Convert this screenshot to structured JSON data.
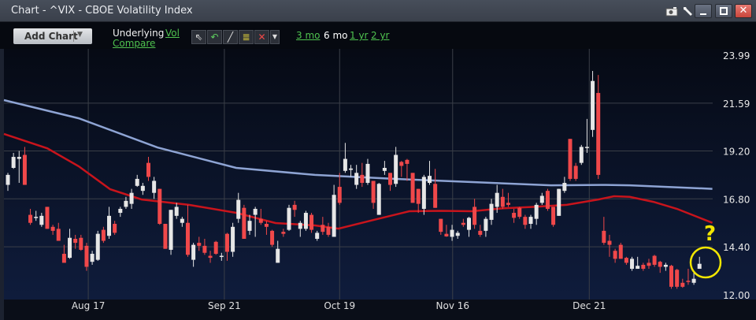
{
  "window": {
    "title": "Chart - ^VIX - CBOE Volatility Index",
    "icons": [
      "camera-icon",
      "wrench-icon",
      "minimize-icon",
      "maximize-icon",
      "close-icon"
    ]
  },
  "toolbar": {
    "add_chart": "Add Chart",
    "underlying": "Underlying",
    "vol": "Vol",
    "compare": "Compare",
    "tools": [
      "pointer-icon",
      "undo-icon",
      "line-draw-icon",
      "study-lines-icon",
      "delete-icon",
      "dropdown-icon"
    ],
    "ranges": [
      {
        "label": "3 mo",
        "active": false
      },
      {
        "label": "6 mo",
        "active": true
      },
      {
        "label": "1 yr",
        "active": false
      },
      {
        "label": "2 yr",
        "active": false
      }
    ]
  },
  "colors": {
    "up": "#e6e6e6",
    "down": "#f0484a",
    "ma_long": "#8ea4d4",
    "ma_short": "#c8141c",
    "annotation": "#f2e600"
  },
  "chart_data": {
    "type": "candlestick",
    "title": "^VIX - CBOE Volatility Index",
    "ylim": [
      12.0,
      23.99
    ],
    "y_ticks": [
      "23.99",
      "21.59",
      "19.20",
      "16.80",
      "14.40",
      "12.00"
    ],
    "x_ticks": [
      {
        "label": "Aug 17",
        "index": 14.3
      },
      {
        "label": "Sep 21",
        "index": 38.5
      },
      {
        "label": "Oct 19",
        "index": 59
      },
      {
        "label": "Nov 16",
        "index": 79.1
      },
      {
        "label": "Dec 21",
        "index": 103.4
      }
    ],
    "candles_ohlc_order": "open,close,high,low",
    "candles": [
      [
        17.5,
        18.0,
        18.1,
        17.2
      ],
      [
        18.35,
        18.9,
        19.1,
        18.3
      ],
      [
        18.8,
        18.9,
        19.2,
        17.6
      ],
      [
        19.0,
        17.5,
        19.4,
        17.5
      ],
      [
        16.0,
        15.6,
        16.3,
        15.5
      ],
      [
        15.85,
        15.9,
        16.2,
        15.7
      ],
      [
        15.5,
        15.95,
        16.1,
        15.4
      ],
      [
        16.4,
        15.3,
        16.4,
        15.3
      ],
      [
        15.4,
        15.2,
        15.5,
        15.0
      ],
      [
        15.3,
        14.7,
        15.6,
        14.7
      ],
      [
        14.05,
        13.6,
        14.5,
        13.6
      ],
      [
        13.85,
        14.85,
        15.3,
        13.8
      ],
      [
        14.8,
        14.6,
        15.0,
        14.3
      ],
      [
        14.85,
        14.25,
        15.0,
        14.2
      ],
      [
        14.45,
        13.4,
        14.6,
        13.2
      ],
      [
        13.65,
        14.05,
        14.2,
        13.5
      ],
      [
        13.75,
        15.05,
        15.2,
        13.7
      ],
      [
        15.25,
        14.7,
        15.4,
        14.6
      ],
      [
        14.95,
        15.95,
        16.4,
        14.8
      ],
      [
        15.55,
        15.1,
        15.7,
        15.0
      ],
      [
        16.1,
        16.3,
        16.4,
        15.9
      ],
      [
        16.4,
        16.7,
        16.9,
        16.3
      ],
      [
        16.55,
        17.1,
        17.3,
        16.3
      ],
      [
        17.45,
        17.8,
        18.0,
        17.4
      ],
      [
        17.2,
        17.45,
        17.6,
        17.0
      ],
      [
        18.6,
        17.9,
        18.9,
        17.7
      ],
      [
        17.1,
        17.7,
        17.9,
        16.8
      ],
      [
        17.3,
        15.55,
        17.3,
        15.5
      ],
      [
        15.55,
        14.3,
        15.55,
        14.3
      ],
      [
        14.25,
        16.25,
        16.25,
        14.0
      ],
      [
        15.95,
        16.4,
        16.6,
        15.8
      ],
      [
        15.6,
        15.8,
        15.9,
        15.4
      ],
      [
        15.6,
        14.0,
        16.5,
        13.9
      ],
      [
        13.75,
        14.5,
        14.6,
        13.4
      ],
      [
        14.6,
        14.45,
        14.9,
        14.2
      ],
      [
        14.45,
        14.1,
        14.8,
        14.0
      ],
      [
        13.95,
        13.85,
        14.2,
        13.6
      ],
      [
        14.65,
        14.05,
        14.7,
        14.0
      ],
      [
        13.9,
        13.95,
        14.1,
        13.7
      ],
      [
        15.05,
        14.15,
        15.1,
        13.7
      ],
      [
        14.15,
        15.4,
        15.6,
        13.9
      ],
      [
        15.8,
        16.75,
        17.1,
        15.6
      ],
      [
        16.35,
        14.8,
        16.5,
        14.8
      ],
      [
        15.2,
        15.7,
        16.0,
        15.0
      ],
      [
        16.0,
        16.3,
        16.4,
        14.9
      ],
      [
        15.8,
        15.6,
        16.3,
        15.5
      ],
      [
        15.55,
        15.4,
        15.7,
        15.0
      ],
      [
        15.2,
        14.5,
        15.25,
        14.4
      ],
      [
        13.6,
        14.3,
        14.7,
        13.6
      ],
      [
        15.15,
        15.05,
        15.3,
        14.9
      ],
      [
        15.25,
        16.35,
        16.5,
        15.2
      ],
      [
        16.5,
        16.25,
        16.7,
        15.9
      ],
      [
        15.3,
        15.6,
        15.7,
        14.9
      ],
      [
        15.3,
        16.1,
        16.2,
        15.2
      ],
      [
        16.0,
        15.25,
        16.1,
        15.1
      ],
      [
        14.8,
        15.1,
        15.2,
        14.7
      ],
      [
        15.5,
        15.15,
        15.9,
        15.0
      ],
      [
        15.4,
        15.0,
        15.6,
        14.9
      ],
      [
        14.9,
        17.0,
        17.5,
        14.9
      ],
      [
        17.4,
        16.6,
        18.1,
        16.5
      ],
      [
        18.2,
        18.8,
        19.6,
        18.1
      ],
      [
        18.25,
        18.32,
        18.5,
        17.9
      ],
      [
        17.5,
        18.1,
        18.5,
        17.3
      ],
      [
        18.0,
        17.6,
        18.6,
        17.4
      ],
      [
        17.6,
        18.55,
        18.8,
        17.5
      ],
      [
        17.7,
        16.6,
        17.7,
        16.3
      ],
      [
        16.0,
        17.55,
        17.6,
        16.0
      ],
      [
        18.2,
        18.35,
        18.7,
        18.0
      ],
      [
        18.1,
        17.5,
        18.1,
        17.2
      ],
      [
        17.55,
        19.0,
        19.4,
        17.4
      ],
      [
        18.65,
        18.45,
        18.7,
        17.9
      ],
      [
        18.75,
        18.55,
        18.8,
        17.7
      ],
      [
        18.1,
        16.6,
        18.1,
        16.6
      ],
      [
        17.3,
        16.55,
        17.3,
        16.1
      ],
      [
        16.3,
        17.9,
        18.0,
        16.0
      ],
      [
        17.6,
        17.95,
        18.7,
        17.5
      ],
      [
        17.55,
        16.35,
        18.3,
        16.35
      ],
      [
        15.8,
        15.15,
        15.8,
        15.0
      ],
      [
        15.05,
        14.92,
        15.5,
        14.9
      ],
      [
        14.9,
        15.25,
        15.5,
        14.7
      ],
      [
        14.95,
        15.1,
        15.2,
        14.8
      ],
      [
        15.6,
        15.5,
        15.8,
        15.4
      ],
      [
        15.25,
        15.85,
        15.9,
        14.9
      ],
      [
        16.4,
        15.5,
        16.8,
        15.3
      ],
      [
        15.2,
        15.0,
        15.5,
        14.9
      ],
      [
        15.2,
        15.8,
        15.9,
        14.9
      ],
      [
        15.75,
        16.55,
        16.8,
        15.5
      ],
      [
        16.4,
        17.1,
        17.5,
        16.1
      ],
      [
        16.9,
        16.4,
        17.3,
        16.3
      ],
      [
        16.6,
        16.5,
        17.1,
        16.4
      ],
      [
        16.1,
        15.85,
        16.3,
        15.6
      ],
      [
        16.35,
        15.9,
        16.4,
        15.8
      ],
      [
        15.9,
        15.5,
        16.0,
        15.3
      ],
      [
        15.55,
        15.9,
        16.0,
        15.3
      ],
      [
        15.8,
        16.5,
        16.6,
        15.5
      ],
      [
        16.6,
        16.95,
        17.1,
        16.5
      ],
      [
        17.2,
        16.3,
        17.3,
        16.2
      ],
      [
        16.4,
        15.5,
        16.4,
        15.4
      ],
      [
        15.95,
        17.3,
        17.3,
        15.95
      ],
      [
        17.2,
        17.6,
        17.9,
        17.1
      ],
      [
        19.8,
        17.8,
        19.8,
        17.7
      ],
      [
        18.45,
        17.8,
        18.6,
        17.7
      ],
      [
        18.6,
        19.4,
        19.5,
        18.5
      ],
      [
        19.35,
        19.4,
        20.8,
        19.1
      ],
      [
        20.25,
        22.7,
        23.2,
        19.9
      ],
      [
        22.1,
        18.0,
        23.0,
        17.8
      ],
      [
        15.2,
        14.6,
        15.9,
        14.5
      ],
      [
        14.7,
        14.5,
        15.0,
        13.9
      ],
      [
        14.2,
        13.8,
        14.3,
        13.6
      ],
      [
        14.5,
        13.8,
        14.6,
        13.8
      ],
      [
        13.85,
        13.6,
        13.9,
        13.5
      ],
      [
        13.3,
        13.8,
        13.9,
        13.2
      ],
      [
        13.3,
        13.45,
        13.9,
        13.3
      ],
      [
        13.5,
        13.3,
        13.6,
        13.2
      ],
      [
        13.6,
        13.45,
        13.8,
        13.3
      ],
      [
        13.95,
        13.5,
        14.0,
        13.4
      ],
      [
        13.65,
        13.4,
        13.7,
        13.1
      ],
      [
        13.4,
        13.5,
        13.6,
        13.2
      ],
      [
        13.45,
        12.4,
        13.5,
        12.3
      ],
      [
        13.25,
        12.4,
        13.3,
        12.3
      ],
      [
        12.6,
        12.4,
        12.8,
        12.35
      ],
      [
        12.7,
        12.65,
        13.3,
        12.5
      ],
      [
        12.6,
        12.8,
        13.2,
        12.5
      ],
      [
        13.3,
        13.55,
        13.9,
        13.3
      ]
    ],
    "series": [
      {
        "name": "long moving average",
        "points": [
          [
            -0.7,
            21.74
          ],
          [
            12.6,
            20.83
          ],
          [
            26.6,
            19.37
          ],
          [
            40.6,
            18.35
          ],
          [
            54.6,
            18.0
          ],
          [
            68.6,
            17.8
          ],
          [
            82.6,
            17.64
          ],
          [
            96.6,
            17.48
          ],
          [
            106.4,
            17.5
          ],
          [
            110.6,
            17.48
          ],
          [
            125.3,
            17.3
          ]
        ]
      },
      {
        "name": "short moving average",
        "points": [
          [
            -0.7,
            20.05
          ],
          [
            7,
            19.33
          ],
          [
            12.6,
            18.43
          ],
          [
            18.2,
            17.28
          ],
          [
            23.8,
            16.77
          ],
          [
            32.2,
            16.5
          ],
          [
            40.6,
            16.1
          ],
          [
            47.6,
            15.59
          ],
          [
            54.6,
            15.47
          ],
          [
            58.8,
            15.31
          ],
          [
            64.4,
            15.7
          ],
          [
            71.4,
            16.18
          ],
          [
            77,
            16.2
          ],
          [
            82.6,
            16.18
          ],
          [
            88.2,
            16.33
          ],
          [
            93.8,
            16.4
          ],
          [
            99.4,
            16.5
          ],
          [
            105,
            16.77
          ],
          [
            107.8,
            16.93
          ],
          [
            110.6,
            16.9
          ],
          [
            114.8,
            16.65
          ],
          [
            119,
            16.3
          ],
          [
            125.3,
            15.6
          ]
        ]
      }
    ],
    "annotation": {
      "text": "?",
      "target_index": 125
    }
  }
}
